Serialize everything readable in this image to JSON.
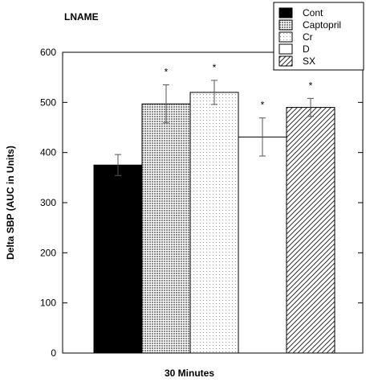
{
  "chart_data": {
    "type": "bar",
    "title": "LNAME",
    "xlabel": "30 Minutes",
    "ylabel": "Delta SBP (AUC in Units)",
    "ylim": [
      0,
      600
    ],
    "yticks": [
      0,
      100,
      200,
      300,
      400,
      500,
      600
    ],
    "grid": false,
    "legend_position": "top-right",
    "categories": [
      "Cont",
      "Captopril",
      "Cr",
      "D",
      "SX"
    ],
    "values": [
      375,
      497,
      520,
      431,
      490
    ],
    "errors": [
      21,
      38,
      24,
      38,
      18
    ],
    "significance": [
      "",
      "*",
      "*",
      "*",
      "*"
    ],
    "fills": [
      "solid-black",
      "dense-dots",
      "sparse-dots",
      "white",
      "diagonal-hatch"
    ],
    "colors": {
      "black": "#000000",
      "gray_dots": "#8a8a8a",
      "white": "#ffffff"
    }
  }
}
